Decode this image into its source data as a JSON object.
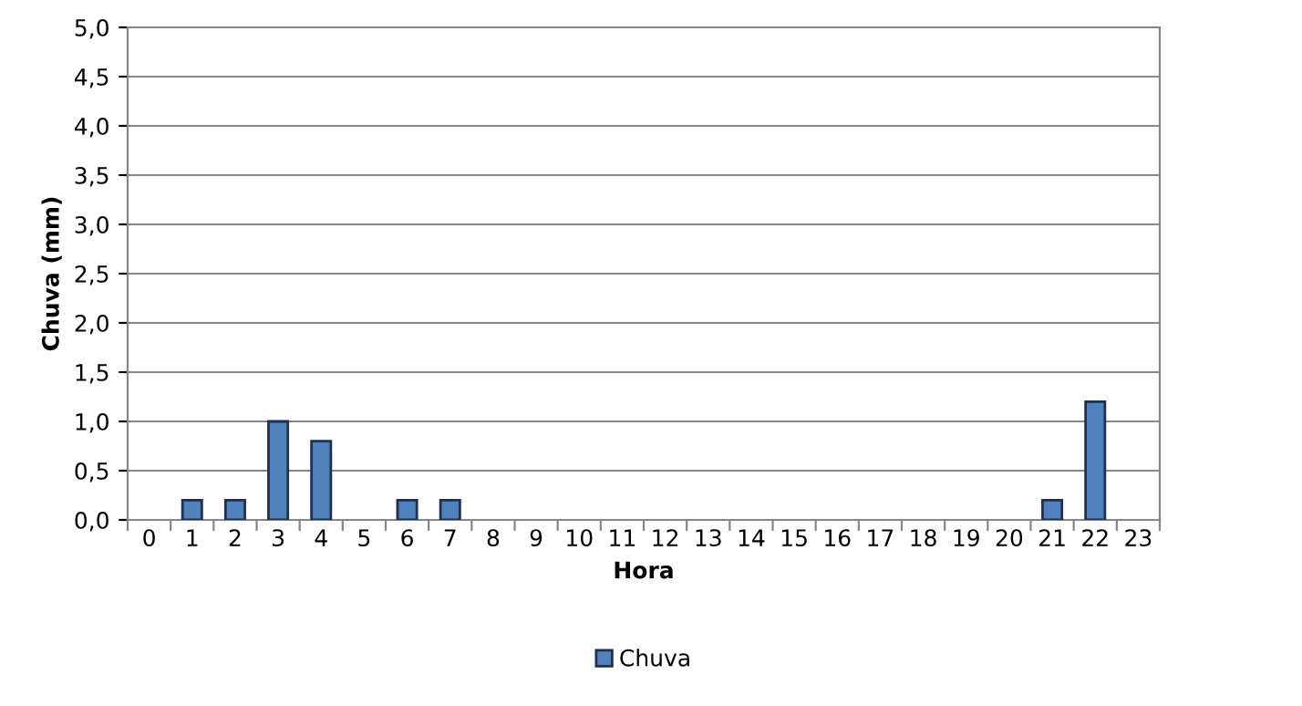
{
  "chart_data": {
    "type": "bar",
    "xlabel": "Hora",
    "ylabel": "Chuva (mm)",
    "categories": [
      "0",
      "1",
      "2",
      "3",
      "4",
      "5",
      "6",
      "7",
      "8",
      "9",
      "10",
      "11",
      "12",
      "13",
      "14",
      "15",
      "16",
      "17",
      "18",
      "19",
      "20",
      "21",
      "22",
      "23"
    ],
    "series": [
      {
        "name": "Chuva",
        "color": "#4f81bd",
        "values": [
          0,
          0.2,
          0.2,
          1.0,
          0.8,
          0,
          0.2,
          0.2,
          0,
          0,
          0,
          0,
          0,
          0,
          0,
          0,
          0,
          0,
          0,
          0,
          0,
          0.2,
          1.2,
          0
        ]
      }
    ],
    "ylim": [
      0,
      5
    ],
    "yticks": [
      {
        "value": 0,
        "label": "0,0"
      },
      {
        "value": 0.5,
        "label": "0,5"
      },
      {
        "value": 1,
        "label": "1,0"
      },
      {
        "value": 1.5,
        "label": "1,5"
      },
      {
        "value": 2,
        "label": "2,0"
      },
      {
        "value": 2.5,
        "label": "2,5"
      },
      {
        "value": 3,
        "label": "3,0"
      },
      {
        "value": 3.5,
        "label": "3,5"
      },
      {
        "value": 4,
        "label": "4,0"
      },
      {
        "value": 4.5,
        "label": "4,5"
      },
      {
        "value": 5,
        "label": "5,0"
      }
    ],
    "grid": "y",
    "legend": "bottom"
  }
}
